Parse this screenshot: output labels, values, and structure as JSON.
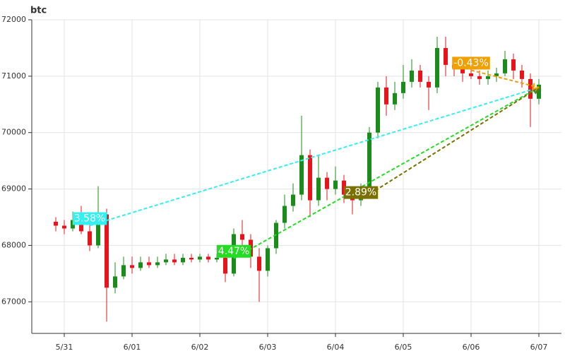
{
  "chart_data": {
    "type": "candlestick",
    "title": "btc",
    "categories": [
      null,
      "5/31",
      null,
      null,
      null,
      null,
      null,
      null,
      null,
      "6/01",
      null,
      null,
      null,
      null,
      null,
      null,
      null,
      "6/02",
      null,
      null,
      null,
      null,
      null,
      null,
      null,
      "6/03",
      null,
      null,
      null,
      null,
      null,
      null,
      null,
      "6/04",
      null,
      null,
      null,
      null,
      null,
      null,
      null,
      "6/05",
      null,
      null,
      null,
      null,
      null,
      null,
      null,
      "6/06",
      null,
      null,
      null,
      null,
      null,
      null,
      null,
      "6/07"
    ],
    "open": [
      68420,
      68350,
      68300,
      68450,
      68250,
      68000,
      68550,
      67250,
      67450,
      67650,
      67600,
      67700,
      67650,
      67700,
      67750,
      67700,
      67780,
      67750,
      67800,
      67750,
      67780,
      67500,
      68200,
      68100,
      67800,
      67550,
      67950,
      68400,
      68700,
      68900,
      69600,
      68800,
      69200,
      69000,
      69150,
      68900,
      68800,
      69000,
      70000,
      70800,
      70500,
      70700,
      70900,
      71100,
      70900,
      70800,
      71500,
      71200,
      71150,
      71050,
      71000,
      70950,
      71000,
      71050,
      71300,
      71100,
      70950,
      70600
    ],
    "close": [
      68350,
      68300,
      68450,
      68250,
      68000,
      68550,
      67250,
      67450,
      67650,
      67600,
      67700,
      67650,
      67700,
      67750,
      67700,
      67780,
      67750,
      67800,
      67750,
      67780,
      67500,
      68200,
      68100,
      67800,
      67550,
      67950,
      68400,
      68700,
      68900,
      69600,
      68800,
      69200,
      69000,
      69150,
      68900,
      68800,
      69000,
      70000,
      70800,
      70500,
      70700,
      70900,
      71100,
      70900,
      70800,
      71500,
      71200,
      71150,
      71050,
      71000,
      70950,
      71000,
      71050,
      71300,
      71100,
      70950,
      70600,
      70850
    ],
    "low": [
      68250,
      68200,
      68250,
      68200,
      67900,
      67950,
      66650,
      67150,
      67400,
      67500,
      67550,
      67600,
      67600,
      67650,
      67650,
      67650,
      67700,
      67700,
      67700,
      67700,
      67350,
      67450,
      68000,
      67600,
      67000,
      67450,
      67850,
      68300,
      68600,
      68800,
      68500,
      68700,
      68800,
      68900,
      68750,
      68550,
      68700,
      68950,
      69900,
      70300,
      70400,
      70600,
      70800,
      70800,
      70400,
      70700,
      71000,
      71000,
      70900,
      70950,
      70850,
      70850,
      70900,
      71000,
      70950,
      70800,
      70100,
      70500
    ],
    "high": [
      68500,
      68450,
      68600,
      68700,
      68400,
      69050,
      68650,
      67700,
      67800,
      67800,
      67800,
      67800,
      67800,
      67850,
      67850,
      67850,
      67850,
      67850,
      67850,
      67850,
      67800,
      68300,
      68450,
      68200,
      67950,
      68000,
      68450,
      68900,
      69100,
      70300,
      69700,
      69600,
      69300,
      69400,
      69250,
      69000,
      69100,
      70100,
      70900,
      71000,
      70900,
      71200,
      71300,
      71200,
      71000,
      71700,
      71700,
      71300,
      71250,
      71150,
      71100,
      71100,
      71150,
      71450,
      71400,
      71200,
      71050,
      70950
    ],
    "up_color": "#1a8c1a",
    "down_color": "#e8141c",
    "ylim": [
      66440,
      72000
    ],
    "yticks": [
      67000,
      68000,
      69000,
      70000,
      71000,
      72000
    ],
    "grid": true,
    "annotations": [
      {
        "text": "3.58%",
        "color": "#33f0f0",
        "from": [
          4,
          68350
        ],
        "to": [
          57,
          70800
        ]
      },
      {
        "text": "4.47%",
        "color": "#22dd22",
        "from": [
          21,
          67770
        ],
        "to": [
          57,
          70800
        ]
      },
      {
        "text": "2.89%",
        "color": "#7a7000",
        "from": [
          36,
          68812
        ],
        "to": [
          57,
          70800
        ]
      },
      {
        "text": "-0.43%",
        "color": "#f0a000",
        "from": [
          49,
          71106
        ],
        "to": [
          57,
          70800
        ]
      }
    ]
  }
}
